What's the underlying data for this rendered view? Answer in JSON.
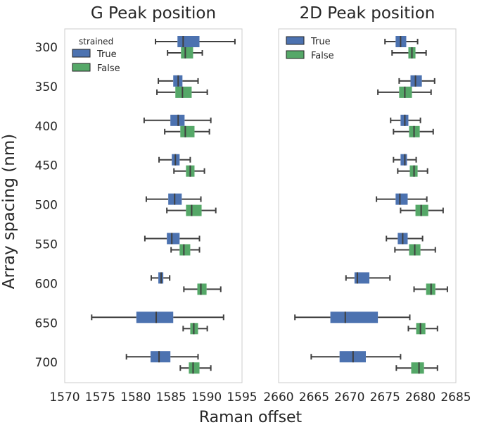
{
  "figure": {
    "ylabel": "Array spacing (nm)",
    "xlabel": "Raman offset"
  },
  "colors": {
    "true": "#4c72b0",
    "false": "#55a868",
    "whisker": "#3f3f3f",
    "frame": "#cccccc",
    "text": "#262626"
  },
  "chart_data": [
    {
      "type": "box",
      "title": "G Peak position",
      "xlabel": "",
      "ylabel": "Array spacing (nm)",
      "categories": [
        "300",
        "350",
        "400",
        "450",
        "500",
        "550",
        "600",
        "650",
        "700"
      ],
      "xlim": [
        1570,
        1595
      ],
      "xticks": [
        1570,
        1575,
        1580,
        1585,
        1590,
        1595
      ],
      "grid": false,
      "legend": {
        "title": "strained",
        "position": "top-left",
        "entries": [
          "True",
          "False"
        ]
      },
      "series": [
        {
          "name": "True",
          "boxes": [
            {
              "whislo": 1582.8,
              "q1": 1585.9,
              "med": 1586.7,
              "q3": 1589.0,
              "whishi": 1594.0
            },
            {
              "whislo": 1583.2,
              "q1": 1585.3,
              "med": 1586.0,
              "q3": 1586.6,
              "whishi": 1588.8
            },
            {
              "whislo": 1581.2,
              "q1": 1584.9,
              "med": 1586.0,
              "q3": 1586.9,
              "whishi": 1590.6
            },
            {
              "whislo": 1583.3,
              "q1": 1585.1,
              "med": 1585.6,
              "q3": 1586.2,
              "whishi": 1587.7
            },
            {
              "whislo": 1581.5,
              "q1": 1584.6,
              "med": 1585.5,
              "q3": 1586.5,
              "whishi": 1589.2
            },
            {
              "whislo": 1581.3,
              "q1": 1584.4,
              "med": 1585.1,
              "q3": 1586.2,
              "whishi": 1589.0
            },
            {
              "whislo": 1582.2,
              "q1": 1583.2,
              "med": 1583.6,
              "q3": 1583.9,
              "whishi": 1584.8
            },
            {
              "whislo": 1573.8,
              "q1": 1580.1,
              "med": 1582.9,
              "q3": 1585.3,
              "whishi": 1592.4
            },
            {
              "whislo": 1578.7,
              "q1": 1582.1,
              "med": 1583.3,
              "q3": 1584.9,
              "whishi": 1588.8
            }
          ]
        },
        {
          "name": "False",
          "boxes": [
            {
              "whislo": 1584.5,
              "q1": 1586.4,
              "med": 1587.0,
              "q3": 1588.1,
              "whishi": 1589.4
            },
            {
              "whislo": 1583.0,
              "q1": 1585.6,
              "med": 1586.6,
              "q3": 1587.9,
              "whishi": 1590.1
            },
            {
              "whislo": 1584.1,
              "q1": 1586.3,
              "med": 1587.0,
              "q3": 1588.3,
              "whishi": 1590.4
            },
            {
              "whislo": 1585.4,
              "q1": 1587.1,
              "med": 1587.7,
              "q3": 1588.3,
              "whishi": 1589.7
            },
            {
              "whislo": 1584.4,
              "q1": 1587.1,
              "med": 1587.9,
              "q3": 1589.3,
              "whishi": 1591.3
            },
            {
              "whislo": 1585.0,
              "q1": 1586.2,
              "med": 1586.8,
              "q3": 1587.7,
              "whishi": 1589.0
            },
            {
              "whislo": 1586.8,
              "q1": 1588.7,
              "med": 1589.2,
              "q3": 1590.0,
              "whishi": 1592.0
            },
            {
              "whislo": 1586.7,
              "q1": 1587.7,
              "med": 1588.2,
              "q3": 1588.8,
              "whishi": 1590.1
            },
            {
              "whislo": 1586.3,
              "q1": 1587.5,
              "med": 1588.1,
              "q3": 1589.0,
              "whishi": 1590.6
            }
          ]
        }
      ]
    },
    {
      "type": "box",
      "title": "2D Peak position",
      "xlabel": "",
      "ylabel": "",
      "categories": [
        "300",
        "350",
        "400",
        "450",
        "500",
        "550",
        "600",
        "650",
        "700"
      ],
      "xlim": [
        2660,
        2685
      ],
      "xticks": [
        2660,
        2665,
        2670,
        2675,
        2680,
        2685
      ],
      "grid": false,
      "legend": {
        "title": "",
        "position": "top-left",
        "entries": [
          "True",
          "False"
        ]
      },
      "series": [
        {
          "name": "True",
          "boxes": [
            {
              "whislo": 2675.0,
              "q1": 2676.5,
              "med": 2677.2,
              "q3": 2678.0,
              "whishi": 2679.6
            },
            {
              "whislo": 2677.0,
              "q1": 2678.6,
              "med": 2679.3,
              "q3": 2680.2,
              "whishi": 2682.0
            },
            {
              "whislo": 2675.8,
              "q1": 2677.2,
              "med": 2677.8,
              "q3": 2678.3,
              "whishi": 2680.0
            },
            {
              "whislo": 2676.2,
              "q1": 2677.2,
              "med": 2677.8,
              "q3": 2678.1,
              "whishi": 2679.4
            },
            {
              "whislo": 2673.8,
              "q1": 2676.5,
              "med": 2677.1,
              "q3": 2678.2,
              "whishi": 2680.9
            },
            {
              "whislo": 2675.2,
              "q1": 2676.8,
              "med": 2677.5,
              "q3": 2678.2,
              "whishi": 2680.3
            },
            {
              "whislo": 2669.5,
              "q1": 2670.7,
              "med": 2671.1,
              "q3": 2672.8,
              "whishi": 2675.7
            },
            {
              "whislo": 2662.3,
              "q1": 2667.3,
              "med": 2669.4,
              "q3": 2674.0,
              "whishi": 2678.5
            },
            {
              "whislo": 2664.6,
              "q1": 2668.6,
              "med": 2670.5,
              "q3": 2672.3,
              "whishi": 2677.2
            }
          ]
        },
        {
          "name": "False",
          "boxes": [
            {
              "whislo": 2676.0,
              "q1": 2678.3,
              "med": 2678.8,
              "q3": 2679.3,
              "whishi": 2680.8
            },
            {
              "whislo": 2674.0,
              "q1": 2677.0,
              "med": 2677.8,
              "q3": 2678.8,
              "whishi": 2681.5
            },
            {
              "whislo": 2676.2,
              "q1": 2678.4,
              "med": 2679.1,
              "q3": 2679.9,
              "whishi": 2681.8
            },
            {
              "whislo": 2676.8,
              "q1": 2678.5,
              "med": 2679.1,
              "q3": 2679.6,
              "whishi": 2681.0
            },
            {
              "whislo": 2677.2,
              "q1": 2679.3,
              "med": 2680.1,
              "q3": 2681.1,
              "whishi": 2683.2
            },
            {
              "whislo": 2676.4,
              "q1": 2678.4,
              "med": 2679.2,
              "q3": 2680.0,
              "whishi": 2682.1
            },
            {
              "whislo": 2679.1,
              "q1": 2680.8,
              "med": 2681.5,
              "q3": 2682.1,
              "whishi": 2683.8
            },
            {
              "whislo": 2678.3,
              "q1": 2679.4,
              "med": 2680.0,
              "q3": 2680.7,
              "whishi": 2682.4
            },
            {
              "whislo": 2676.6,
              "q1": 2678.7,
              "med": 2679.8,
              "q3": 2680.5,
              "whishi": 2682.4
            }
          ]
        }
      ]
    }
  ]
}
